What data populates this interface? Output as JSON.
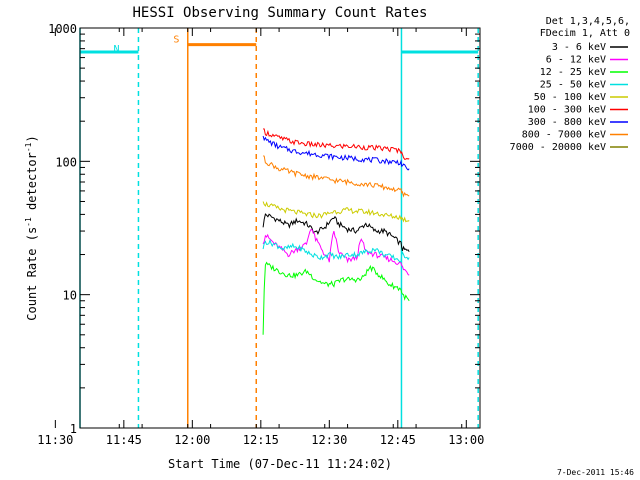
{
  "chart_data": {
    "type": "line",
    "title": "HESSI Observing Summary Count Rates",
    "xlabel": "Start Time (07-Dec-11 11:24:02)",
    "ylabel_main": "Count Rate (s",
    "ylabel_sup1": "-1",
    "ylabel_mid": " detector",
    "ylabel_sup2": "-1",
    "ylabel_end": ")",
    "yscale": "log",
    "ylim": [
      1,
      1000
    ],
    "xlim_minutes": [
      11.4,
      99.0
    ],
    "x_ticks": [
      {
        "label": "11:30",
        "minutes": 6
      },
      {
        "label": "11:45",
        "minutes": 21
      },
      {
        "label": "12:00",
        "minutes": 36
      },
      {
        "label": "12:15",
        "minutes": 51
      },
      {
        "label": "12:30",
        "minutes": 66
      },
      {
        "label": "12:45",
        "minutes": 81
      },
      {
        "label": "13:00",
        "minutes": 96
      }
    ],
    "y_ticks": [
      {
        "label": "1",
        "value": 1
      },
      {
        "label": "10",
        "value": 10
      },
      {
        "label": "100",
        "value": 100
      },
      {
        "label": "1000",
        "value": 1000
      }
    ],
    "legend_header": [
      "Det 1,3,4,5,6,",
      "FDecim 1, Att 0"
    ],
    "legend_placement": "right",
    "timestamp": "7-Dec-2011 15:46",
    "night_color": "#00e0e0",
    "saa_color": "#ff8000",
    "night_intervals": [
      {
        "start": 11.4,
        "end": 24.2,
        "value": 660
      },
      {
        "start": 81.8,
        "end": 98.6,
        "value": 660
      }
    ],
    "saa_intervals": [
      {
        "start": 35.0,
        "end": 50.0,
        "value": 750
      }
    ],
    "markers": [
      {
        "label": "N",
        "minutes": 19.4,
        "value": 660,
        "color": "#00e0e0"
      },
      {
        "label": "S",
        "minutes": 32.5,
        "value": 780,
        "color": "#ff8000"
      }
    ],
    "series": [
      {
        "name": "3 - 6 keV",
        "color": "#000000",
        "x": [
          51.5,
          52,
          55,
          57,
          59,
          61,
          63,
          65,
          67,
          68,
          70,
          72,
          74,
          76,
          78,
          80,
          81.7,
          82,
          83.5
        ],
        "y": [
          32,
          40,
          36,
          33,
          36,
          34,
          29,
          32,
          38,
          34,
          31,
          30,
          34,
          30,
          30,
          27,
          24,
          22,
          21
        ]
      },
      {
        "name": "6 - 12 keV",
        "color": "#ff00ff",
        "x": [
          51.5,
          52,
          54,
          55.5,
          57,
          59,
          61,
          62,
          63,
          65,
          66,
          67,
          68,
          70,
          72,
          73,
          74,
          76,
          78,
          80,
          81.7,
          82,
          83.5
        ],
        "y": [
          24,
          28,
          24,
          22,
          20,
          22,
          24,
          32,
          26,
          20,
          18,
          30,
          21,
          18,
          19,
          26,
          21,
          20,
          19,
          18,
          17,
          16,
          14
        ]
      },
      {
        "name": "12 - 25 keV",
        "color": "#00ff00",
        "x": [
          51.5,
          52,
          55,
          57,
          59,
          61,
          63,
          65,
          67,
          69,
          71,
          73,
          75,
          77,
          79,
          81.7,
          82,
          83.5
        ],
        "y": [
          5,
          17,
          15,
          14,
          14,
          15,
          13,
          12,
          12,
          13,
          13,
          13,
          16,
          14,
          12,
          11,
          10,
          9
        ]
      },
      {
        "name": "25 - 50 keV",
        "color": "#00e0e0",
        "x": [
          51.5,
          52,
          54,
          56,
          58,
          60,
          62,
          64,
          66,
          68,
          70,
          72,
          74,
          76,
          78,
          80,
          81.7,
          82,
          83.5
        ],
        "y": [
          22,
          25,
          24,
          22,
          23,
          22,
          20,
          19,
          20,
          19,
          20,
          20,
          21,
          22,
          20,
          19,
          18,
          20,
          19
        ]
      },
      {
        "name": "50 - 100 keV",
        "color": "#cccc00",
        "x": [
          51.5,
          52,
          55,
          58,
          61,
          64,
          67,
          70,
          73,
          76,
          79,
          81.7,
          82,
          83.5
        ],
        "y": [
          50,
          48,
          44,
          42,
          40,
          39,
          42,
          43,
          42,
          41,
          39,
          38,
          37,
          36
        ]
      },
      {
        "name": "100 - 300 keV",
        "color": "#ff0000",
        "x": [
          51.5,
          52,
          55,
          58,
          61,
          64,
          67,
          70,
          73,
          76,
          79,
          81.7,
          82,
          83.5
        ],
        "y": [
          175,
          165,
          150,
          140,
          135,
          132,
          130,
          130,
          128,
          126,
          124,
          120,
          110,
          105
        ]
      },
      {
        "name": "300 - 800 keV",
        "color": "#0000ff",
        "x": [
          51.5,
          52,
          55,
          58,
          61,
          64,
          67,
          70,
          73,
          76,
          79,
          81.7,
          82,
          83.5
        ],
        "y": [
          155,
          145,
          128,
          120,
          115,
          112,
          108,
          106,
          104,
          102,
          100,
          98,
          92,
          88
        ]
      },
      {
        "name": "800 - 7000 keV",
        "color": "#ff8000",
        "x": [
          51.5,
          52,
          55,
          58,
          61,
          64,
          67,
          70,
          73,
          76,
          79,
          81.7,
          82,
          83.5
        ],
        "y": [
          110,
          100,
          88,
          82,
          78,
          75,
          72,
          70,
          68,
          66,
          63,
          60,
          57,
          55
        ]
      },
      {
        "name": "7000 - 20000 keV",
        "color": "#808000",
        "x": [],
        "y": []
      }
    ]
  }
}
